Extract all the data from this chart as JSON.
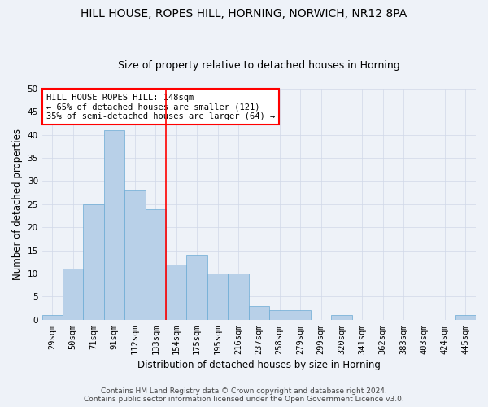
{
  "title1": "HILL HOUSE, ROPES HILL, HORNING, NORWICH, NR12 8PA",
  "title2": "Size of property relative to detached houses in Horning",
  "xlabel": "Distribution of detached houses by size in Horning",
  "ylabel": "Number of detached properties",
  "bar_labels": [
    "29sqm",
    "50sqm",
    "71sqm",
    "91sqm",
    "112sqm",
    "133sqm",
    "154sqm",
    "175sqm",
    "195sqm",
    "216sqm",
    "237sqm",
    "258sqm",
    "279sqm",
    "299sqm",
    "320sqm",
    "341sqm",
    "362sqm",
    "383sqm",
    "403sqm",
    "424sqm",
    "445sqm"
  ],
  "bar_values": [
    1,
    11,
    25,
    41,
    28,
    24,
    12,
    14,
    10,
    10,
    3,
    2,
    2,
    0,
    1,
    0,
    0,
    0,
    0,
    0,
    1
  ],
  "bar_color": "#B8D0E8",
  "bar_edge_color": "#6AAAD4",
  "grid_color": "#D0D8E8",
  "bg_color": "#EEF2F8",
  "annotation_text": "HILL HOUSE ROPES HILL: 148sqm\n← 65% of detached houses are smaller (121)\n35% of semi-detached houses are larger (64) →",
  "annotation_box_color": "white",
  "annotation_box_edge": "red",
  "redline_x": 5.5,
  "ylim": [
    0,
    50
  ],
  "yticks": [
    0,
    5,
    10,
    15,
    20,
    25,
    30,
    35,
    40,
    45,
    50
  ],
  "footer1": "Contains HM Land Registry data © Crown copyright and database right 2024.",
  "footer2": "Contains public sector information licensed under the Open Government Licence v3.0.",
  "title1_fontsize": 10,
  "title2_fontsize": 9,
  "xlabel_fontsize": 8.5,
  "ylabel_fontsize": 8.5,
  "tick_fontsize": 7.5,
  "annotation_fontsize": 7.5,
  "footer_fontsize": 6.5
}
